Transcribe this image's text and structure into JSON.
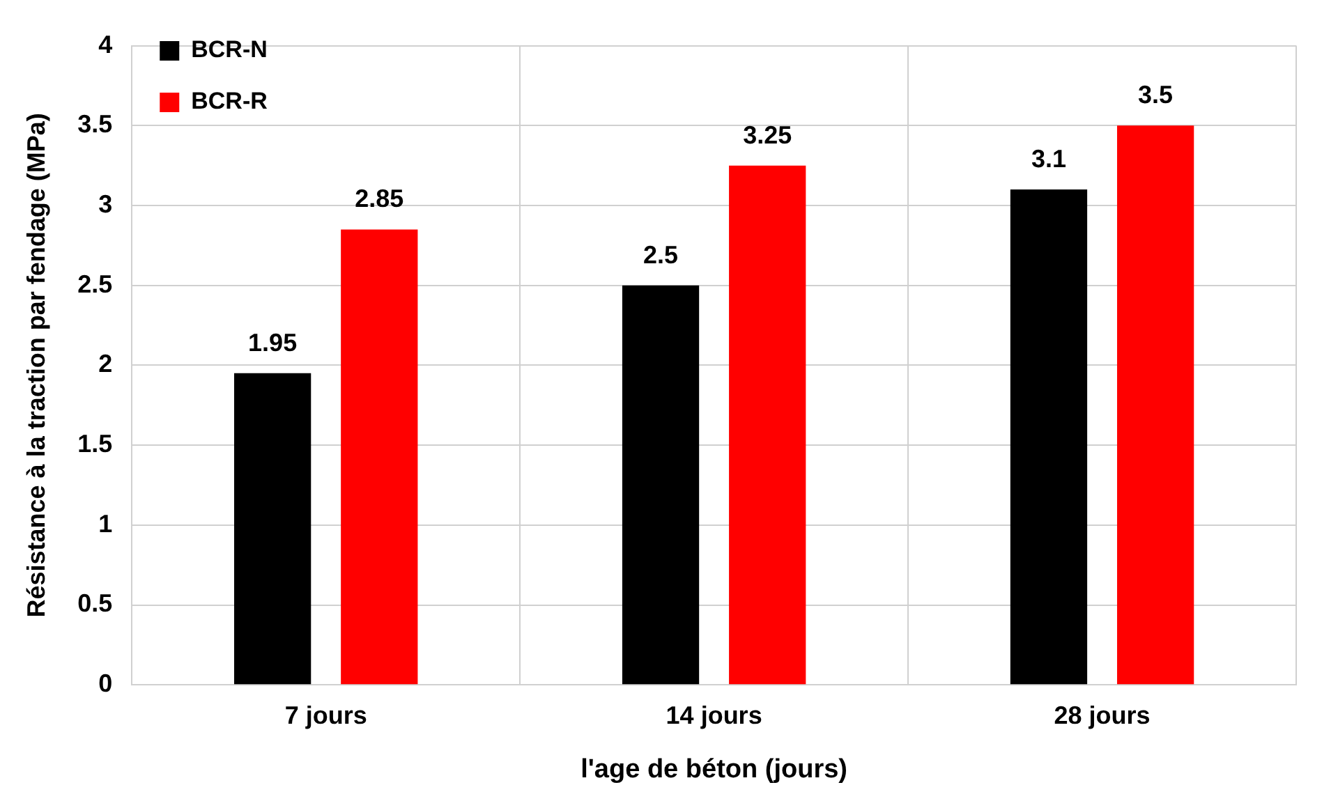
{
  "chart_data": {
    "type": "bar",
    "xlabel": "l'age de béton (jours)",
    "ylabel": "Résistance à la traction par fendage (MPa)",
    "categories": [
      "7 jours",
      "14 jours",
      "28 jours"
    ],
    "series": [
      {
        "name": "BCR-N",
        "color": "#000000",
        "values": [
          1.95,
          2.5,
          3.1
        ]
      },
      {
        "name": "BCR-R",
        "color": "#ff0000",
        "values": [
          2.85,
          3.25,
          3.5
        ]
      }
    ],
    "ylim": [
      0,
      4
    ],
    "yticks": [
      0,
      0.5,
      1,
      1.5,
      2,
      2.5,
      3,
      3.5,
      4
    ],
    "grid": true,
    "legend": "top left",
    "data_labels": true
  }
}
